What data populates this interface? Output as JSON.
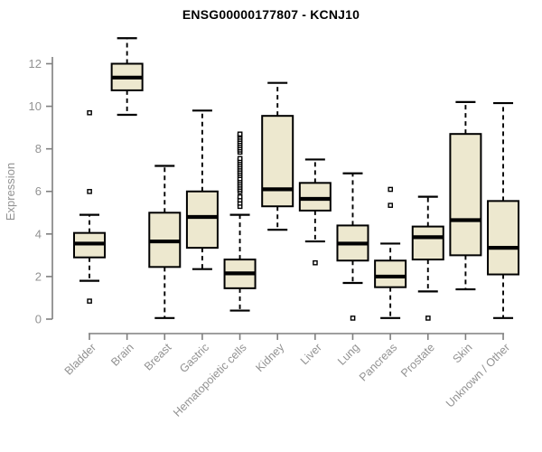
{
  "title": "ENSG00000177807 - KCNJ10",
  "colors": {
    "box_fill": "#EDE8CF",
    "box_stroke": "#000000",
    "axis_line": "#7f7f7f",
    "axis_text": "#929292",
    "title_text": "#000000",
    "outlier_fill": "#ffffff"
  },
  "chart_data": {
    "type": "boxplot",
    "title": "ENSG00000177807 - KCNJ10",
    "xlabel": "",
    "ylabel": "Expression",
    "ylim": [
      0,
      13.3
    ],
    "yticks": [
      0,
      2,
      4,
      6,
      8,
      10,
      12
    ],
    "grid": false,
    "legend": false,
    "categories": [
      "Bladder",
      "Brain",
      "Breast",
      "Gastric",
      "Hematopoietic cells",
      "Kidney",
      "Liver",
      "Lung",
      "Pancreas",
      "Prostate",
      "Skin",
      "Unknown / Other"
    ],
    "series": [
      {
        "name": "Bladder",
        "whisker_low": 1.8,
        "q1": 2.9,
        "median": 3.55,
        "q3": 4.05,
        "whisker_high": 4.9,
        "outliers": [
          0.85,
          6.0,
          9.7
        ]
      },
      {
        "name": "Brain",
        "whisker_low": 9.6,
        "q1": 10.75,
        "median": 11.35,
        "q3": 12.0,
        "whisker_high": 13.2,
        "outliers": []
      },
      {
        "name": "Breast",
        "whisker_low": 0.05,
        "q1": 2.45,
        "median": 3.65,
        "q3": 5.0,
        "whisker_high": 7.2,
        "outliers": []
      },
      {
        "name": "Gastric",
        "whisker_low": 2.35,
        "q1": 3.35,
        "median": 4.8,
        "q3": 6.0,
        "whisker_high": 9.8,
        "outliers": []
      },
      {
        "name": "Hematopoietic cells",
        "whisker_low": 0.4,
        "q1": 1.45,
        "median": 2.15,
        "q3": 2.8,
        "whisker_high": 4.9,
        "outliers": [
          5.3,
          5.45,
          5.6,
          5.75,
          6.0,
          6.1,
          6.2,
          6.3,
          6.4,
          6.5,
          6.6,
          6.75,
          6.85,
          6.95,
          7.05,
          7.15,
          7.25,
          7.35,
          7.45,
          7.55,
          7.85,
          7.95,
          8.05,
          8.15,
          8.25,
          8.35,
          8.45,
          8.55,
          8.65,
          8.7
        ]
      },
      {
        "name": "Kidney",
        "whisker_low": 4.2,
        "q1": 5.3,
        "median": 6.1,
        "q3": 9.55,
        "whisker_high": 11.1,
        "outliers": []
      },
      {
        "name": "Liver",
        "whisker_low": 3.65,
        "q1": 5.1,
        "median": 5.65,
        "q3": 6.4,
        "whisker_high": 7.5,
        "outliers": [
          2.65
        ]
      },
      {
        "name": "Lung",
        "whisker_low": 1.7,
        "q1": 2.75,
        "median": 3.55,
        "q3": 4.4,
        "whisker_high": 6.85,
        "outliers": [
          0.05
        ]
      },
      {
        "name": "Pancreas",
        "whisker_low": 0.05,
        "q1": 1.5,
        "median": 2.0,
        "q3": 2.75,
        "whisker_high": 3.55,
        "outliers": [
          5.35,
          6.1
        ]
      },
      {
        "name": "Prostate",
        "whisker_low": 1.3,
        "q1": 2.8,
        "median": 3.85,
        "q3": 4.35,
        "whisker_high": 5.75,
        "outliers": [
          0.05
        ]
      },
      {
        "name": "Skin",
        "whisker_low": 1.4,
        "q1": 3.0,
        "median": 4.65,
        "q3": 8.7,
        "whisker_high": 10.2,
        "outliers": []
      },
      {
        "name": "Unknown / Other",
        "whisker_low": 0.05,
        "q1": 2.1,
        "median": 3.35,
        "q3": 5.55,
        "whisker_high": 10.15,
        "outliers": []
      }
    ]
  }
}
